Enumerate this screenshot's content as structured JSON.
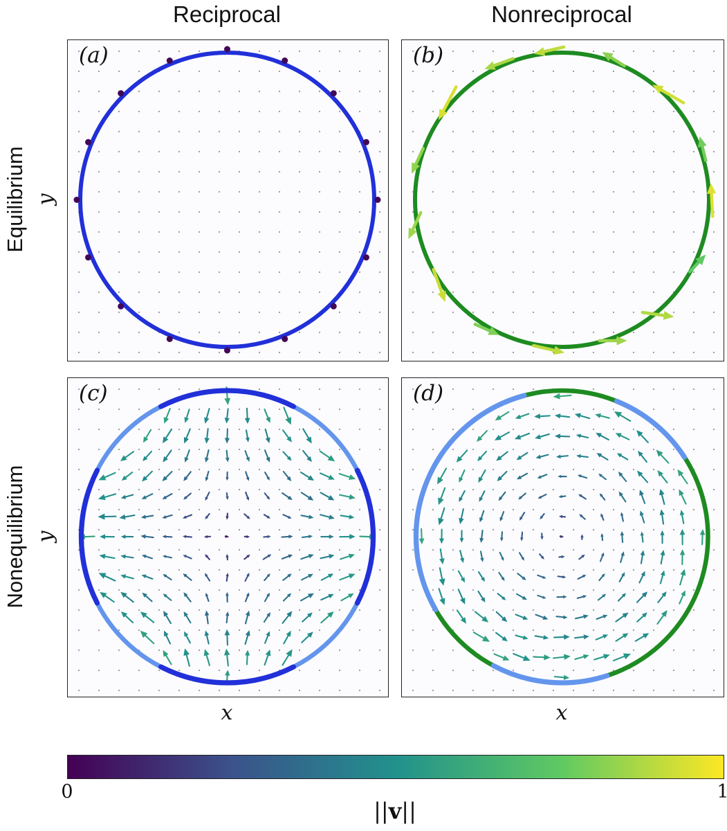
{
  "titles": {
    "col1": "Reciprocal",
    "col2": "Nonreciprocal"
  },
  "row_labels": {
    "row1": "Equilibrium",
    "row2": "Nonequilibrium"
  },
  "axis": {
    "x": "x",
    "y": "y"
  },
  "colors": {
    "blue": "#2130d8",
    "green": "#1e8b21",
    "lightblue": "#6495ed",
    "grid_dot": "#2b2b40"
  },
  "colorbar": {
    "min": "0",
    "max": "1",
    "label_prefix": "||",
    "label_v": "v",
    "label_suffix": "||",
    "colormap": "viridis",
    "stops": [
      "#440154",
      "#3b528b",
      "#21918c",
      "#5ec962",
      "#fde725"
    ]
  },
  "grid": {
    "spacing": 29,
    "dot_radius": 1.1,
    "dot_opacity": 0.5
  },
  "chart_data": [
    {
      "panel": "a",
      "label": "(a)",
      "row": "Equilibrium",
      "column": "Reciprocal",
      "type": "quiver",
      "description": "Circular membrane (blue) at equilibrium with reciprocal interactions; boundary velocities near zero shown as dark dots, no interior flow",
      "circle": {
        "base": "blue",
        "arcs": [],
        "stroke_width": 6
      },
      "boundary": {
        "kind": "dots",
        "value": 0.02,
        "angles_deg": [
          0,
          22.5,
          45,
          67.5,
          90,
          112.5,
          135,
          157.5,
          180,
          202.5,
          225,
          247.5,
          270,
          292.5,
          315,
          337.5
        ]
      },
      "interior": {
        "kind": "none"
      }
    },
    {
      "panel": "b",
      "label": "(b)",
      "row": "Equilibrium",
      "column": "Nonreciprocal",
      "type": "quiver",
      "description": "Circular membrane (green) with nonreciprocal interactions; boundary rotates counterclockwise with high speed (light-green tangential arrows), no interior flow",
      "circle": {
        "base": "green",
        "arcs": [],
        "stroke_width": 6
      },
      "boundary": {
        "kind": "arrows",
        "rotation": "counterclockwise",
        "items": [
          {
            "theta": 95,
            "rot": 8,
            "len": 44,
            "val": 0.9
          },
          {
            "theta": 70,
            "rot": -12,
            "len": 38,
            "val": 0.82
          },
          {
            "theta": 45,
            "rot": 15,
            "len": 52,
            "val": 0.93
          },
          {
            "theta": 20,
            "rot": -6,
            "len": 36,
            "val": 0.78
          },
          {
            "theta": 0,
            "rot": 3,
            "len": 48,
            "val": 0.95
          },
          {
            "theta": -25,
            "rot": -18,
            "len": 34,
            "val": 0.75
          },
          {
            "theta": -50,
            "rot": -48,
            "len": 46,
            "val": 0.88
          },
          {
            "theta": -70,
            "rot": -20,
            "len": 40,
            "val": 0.85
          },
          {
            "theta": -95,
            "rot": -8,
            "len": 46,
            "val": 0.9
          },
          {
            "theta": -120,
            "rot": 6,
            "len": 38,
            "val": 0.8
          },
          {
            "theta": -145,
            "rot": -15,
            "len": 50,
            "val": 0.92
          },
          {
            "theta": -170,
            "rot": -35,
            "len": 42,
            "val": 0.85
          },
          {
            "theta": 165,
            "rot": -10,
            "len": 40,
            "val": 0.83
          },
          {
            "theta": 140,
            "rot": 12,
            "len": 54,
            "val": 0.94
          },
          {
            "theta": 115,
            "rot": -5,
            "len": 44,
            "val": 0.87
          }
        ]
      },
      "interior": {
        "kind": "none"
      }
    },
    {
      "panel": "c",
      "label": "(c)",
      "row": "Nonequilibrium",
      "column": "Reciprocal",
      "type": "quiver",
      "description": "Nonequilibrium reciprocal case: interior extensional (quadrupolar) flow, inflow along y, outflow along x; boundary arcs alternate dark blue (N,S,E,W) and light blue (diagonals)",
      "circle": {
        "base": "lightblue",
        "stroke_width": 6.5,
        "arcs": [
          {
            "from": 63,
            "to": 117,
            "color": "blue"
          },
          {
            "from": 153,
            "to": 207,
            "color": "blue"
          },
          {
            "from": 243,
            "to": 297,
            "color": "blue"
          },
          {
            "from": 333,
            "to": 387,
            "color": "blue"
          }
        ]
      },
      "boundary": {
        "kind": "none"
      },
      "interior": {
        "kind": "quiver",
        "field": "extensional-quadrupole",
        "formula": "v ∝ (x, -y)",
        "value_range": [
          0.12,
          0.58
        ],
        "spacing": 29
      }
    },
    {
      "panel": "d",
      "label": "(d)",
      "row": "Nonequilibrium",
      "column": "Nonreciprocal",
      "type": "quiver",
      "description": "Nonequilibrium nonreciprocal case: interior counterclockwise vortex flow; boundary mostly green with light-blue arcs",
      "circle": {
        "base": "green",
        "stroke_width": 6.5,
        "arcs": [
          {
            "from": 33,
            "to": 68,
            "color": "lightblue"
          },
          {
            "from": 105,
            "to": 210,
            "color": "lightblue"
          },
          {
            "from": 242,
            "to": 288,
            "color": "lightblue"
          }
        ]
      },
      "boundary": {
        "kind": "none"
      },
      "interior": {
        "kind": "quiver",
        "field": "vortex-ccw",
        "formula": "v ∝ (-y, x)",
        "value_range": [
          0.2,
          0.58
        ],
        "spacing": 29
      }
    }
  ]
}
